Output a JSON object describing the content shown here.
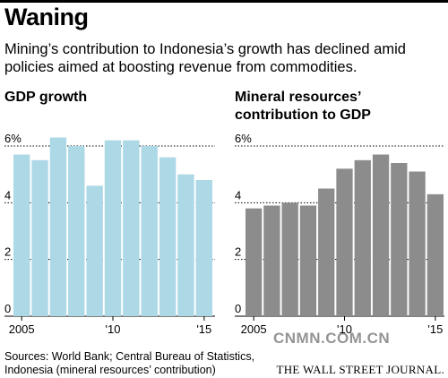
{
  "headline": "Waning",
  "subtitle": "Mining’s contribution to Indonesia’s growth has declined amid policies aimed at boosting revenue from commodities.",
  "source": "Sources: World Bank; Central Bureau of Statistics, Indonesia (mineral resources’ contribution)",
  "publisher": "THE WALL STREET JOURNAL.",
  "watermark": "CNMN.COM.CN",
  "colors": {
    "gdp": "#add8e6",
    "mineral": "#8c8c8c",
    "grid": "#000000"
  },
  "chart_data": [
    {
      "type": "bar",
      "title": "GDP growth",
      "categories": [
        "2005",
        "2006",
        "2007",
        "2008",
        "2009",
        "2010",
        "2011",
        "2012",
        "2013",
        "2014",
        "2015"
      ],
      "values": [
        5.7,
        5.5,
        6.3,
        6.0,
        4.6,
        6.2,
        6.2,
        6.0,
        5.6,
        5.0,
        4.8
      ],
      "y_ticks": [
        "0",
        "2",
        "4",
        "6%"
      ],
      "x_ticks": [
        "2005",
        "'10",
        "'15"
      ],
      "ylim": [
        0,
        7
      ],
      "grid": true
    },
    {
      "type": "bar",
      "title": "Mineral resources’ contribution to GDP",
      "categories": [
        "2005",
        "2006",
        "2007",
        "2008",
        "2009",
        "2010",
        "2011",
        "2012",
        "2013",
        "2014",
        "2015"
      ],
      "values": [
        3.8,
        3.9,
        4.0,
        3.9,
        4.5,
        5.2,
        5.5,
        5.7,
        5.4,
        5.1,
        4.3
      ],
      "y_ticks": [
        "0",
        "2",
        "4",
        "6%"
      ],
      "x_ticks": [
        "2005",
        "'10",
        "'15"
      ],
      "ylim": [
        0,
        7
      ],
      "grid": true
    }
  ]
}
